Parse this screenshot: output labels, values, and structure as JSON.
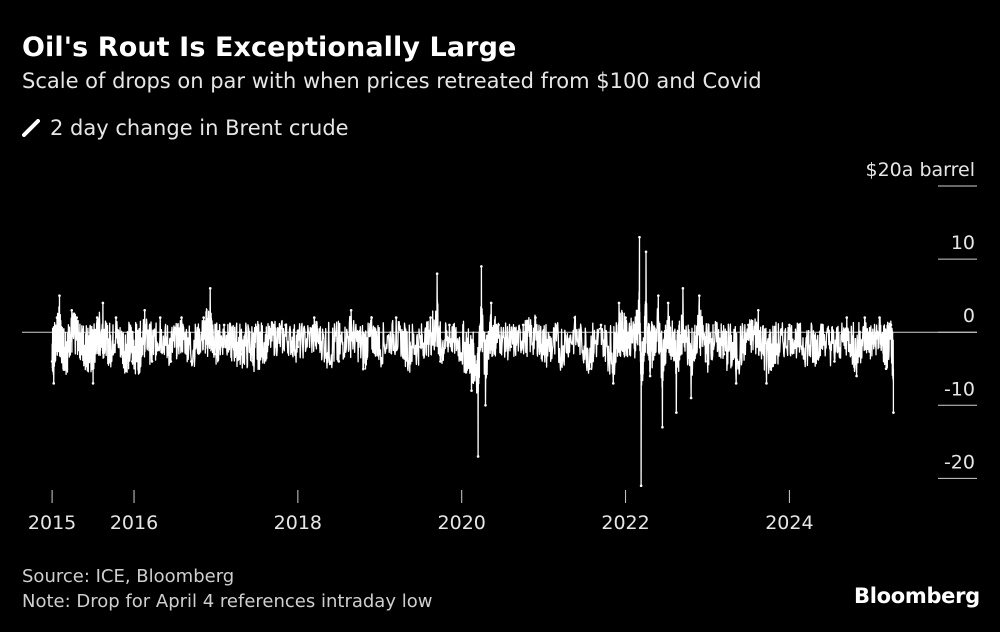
{
  "header": {
    "title": "Oil's Rout Is Exceptionally Large",
    "subtitle": "Scale of drops on par with when prices retreated from $100 and Covid"
  },
  "legend": {
    "label": "2 day change in Brent crude",
    "icon": "line-swatch-icon",
    "color": "#ffffff"
  },
  "footer": {
    "source": "Source: ICE, Bloomberg",
    "note": "Note: Drop for April 4 references intraday low",
    "logo": "Bloomberg"
  },
  "chart_data": {
    "type": "line",
    "series": [
      {
        "name": "2 day change in Brent crude",
        "color": "#ffffff",
        "points": [
          {
            "x": 2015.0,
            "y": -4
          },
          {
            "x": 2015.02,
            "y": -7
          },
          {
            "x": 2015.06,
            "y": 2
          },
          {
            "x": 2015.09,
            "y": 5
          },
          {
            "x": 2015.12,
            "y": -3
          },
          {
            "x": 2015.18,
            "y": -5
          },
          {
            "x": 2015.24,
            "y": 3
          },
          {
            "x": 2015.3,
            "y": 2
          },
          {
            "x": 2015.37,
            "y": -3
          },
          {
            "x": 2015.44,
            "y": -4
          },
          {
            "x": 2015.5,
            "y": -7
          },
          {
            "x": 2015.55,
            "y": 2
          },
          {
            "x": 2015.62,
            "y": 4
          },
          {
            "x": 2015.7,
            "y": -4
          },
          {
            "x": 2015.78,
            "y": 2
          },
          {
            "x": 2015.88,
            "y": -4
          },
          {
            "x": 2015.98,
            "y": -4
          },
          {
            "x": 2016.06,
            "y": -5
          },
          {
            "x": 2016.13,
            "y": 3
          },
          {
            "x": 2016.22,
            "y": -4
          },
          {
            "x": 2016.32,
            "y": 2
          },
          {
            "x": 2016.45,
            "y": -4
          },
          {
            "x": 2016.58,
            "y": 2
          },
          {
            "x": 2016.7,
            "y": -4
          },
          {
            "x": 2016.85,
            "y": 2
          },
          {
            "x": 2016.93,
            "y": 6
          },
          {
            "x": 2016.98,
            "y": -3
          },
          {
            "x": 2017.1,
            "y": 1
          },
          {
            "x": 2017.2,
            "y": -2
          },
          {
            "x": 2017.3,
            "y": -3
          },
          {
            "x": 2017.45,
            "y": -4
          },
          {
            "x": 2017.55,
            "y": -3
          },
          {
            "x": 2017.7,
            "y": 1
          },
          {
            "x": 2017.85,
            "y": 1
          },
          {
            "x": 2018.0,
            "y": -2
          },
          {
            "x": 2018.2,
            "y": 2
          },
          {
            "x": 2018.35,
            "y": -3
          },
          {
            "x": 2018.5,
            "y": -4
          },
          {
            "x": 2018.65,
            "y": 3
          },
          {
            "x": 2018.8,
            "y": -5
          },
          {
            "x": 2018.9,
            "y": 2
          },
          {
            "x": 2019.0,
            "y": -3
          },
          {
            "x": 2019.2,
            "y": 2
          },
          {
            "x": 2019.35,
            "y": -4
          },
          {
            "x": 2019.5,
            "y": -2
          },
          {
            "x": 2019.62,
            "y": 2
          },
          {
            "x": 2019.7,
            "y": 8
          },
          {
            "x": 2019.74,
            "y": -4
          },
          {
            "x": 2019.85,
            "y": 1
          },
          {
            "x": 2020.0,
            "y": -3
          },
          {
            "x": 2020.12,
            "y": -8
          },
          {
            "x": 2020.2,
            "y": -17
          },
          {
            "x": 2020.24,
            "y": 9
          },
          {
            "x": 2020.29,
            "y": -10
          },
          {
            "x": 2020.36,
            "y": 4
          },
          {
            "x": 2020.45,
            "y": 1
          },
          {
            "x": 2020.6,
            "y": -2
          },
          {
            "x": 2020.75,
            "y": 1
          },
          {
            "x": 2020.9,
            "y": 2
          },
          {
            "x": 2021.0,
            "y": -3
          },
          {
            "x": 2021.2,
            "y": -4
          },
          {
            "x": 2021.38,
            "y": 2
          },
          {
            "x": 2021.56,
            "y": -5
          },
          {
            "x": 2021.7,
            "y": 1
          },
          {
            "x": 2021.85,
            "y": -7
          },
          {
            "x": 2021.92,
            "y": 4
          },
          {
            "x": 2022.0,
            "y": 2
          },
          {
            "x": 2022.1,
            "y": 1
          },
          {
            "x": 2022.17,
            "y": 13
          },
          {
            "x": 2022.19,
            "y": -21
          },
          {
            "x": 2022.25,
            "y": 11
          },
          {
            "x": 2022.3,
            "y": -6
          },
          {
            "x": 2022.4,
            "y": 5
          },
          {
            "x": 2022.45,
            "y": -13
          },
          {
            "x": 2022.52,
            "y": 4
          },
          {
            "x": 2022.62,
            "y": -11
          },
          {
            "x": 2022.7,
            "y": 6
          },
          {
            "x": 2022.8,
            "y": -9
          },
          {
            "x": 2022.9,
            "y": 5
          },
          {
            "x": 2023.0,
            "y": -4
          },
          {
            "x": 2023.1,
            "y": 1
          },
          {
            "x": 2023.2,
            "y": -3
          },
          {
            "x": 2023.35,
            "y": -7
          },
          {
            "x": 2023.5,
            "y": 1
          },
          {
            "x": 2023.62,
            "y": 3
          },
          {
            "x": 2023.72,
            "y": -7
          },
          {
            "x": 2023.85,
            "y": -3
          },
          {
            "x": 2024.0,
            "y": 1
          },
          {
            "x": 2024.15,
            "y": -2
          },
          {
            "x": 2024.3,
            "y": -4
          },
          {
            "x": 2024.4,
            "y": 1
          },
          {
            "x": 2024.55,
            "y": -4
          },
          {
            "x": 2024.7,
            "y": 2
          },
          {
            "x": 2024.82,
            "y": -6
          },
          {
            "x": 2024.92,
            "y": 2
          },
          {
            "x": 2025.0,
            "y": -2
          },
          {
            "x": 2025.1,
            "y": 2
          },
          {
            "x": 2025.18,
            "y": -5
          },
          {
            "x": 2025.24,
            "y": 1
          },
          {
            "x": 2025.27,
            "y": -11
          }
        ]
      }
    ],
    "x_tick_labels": [
      {
        "x": 2015,
        "label": "2015"
      },
      {
        "x": 2016,
        "label": "2016"
      },
      {
        "x": 2018,
        "label": "2018"
      },
      {
        "x": 2020,
        "label": "2020"
      },
      {
        "x": 2022,
        "label": "2022"
      },
      {
        "x": 2024,
        "label": "2024"
      }
    ],
    "y_tick_labels": [
      {
        "y": 20,
        "label": "$20a barrel"
      },
      {
        "y": 10,
        "label": "10"
      },
      {
        "y": 0,
        "label": "0"
      },
      {
        "y": -10,
        "label": "-10"
      },
      {
        "y": -20,
        "label": "-20"
      }
    ],
    "xlim": [
      2014.95,
      2025.35
    ],
    "ylim": [
      -22,
      20
    ],
    "zero_line": true,
    "grid": false,
    "y_axis_side": "right"
  }
}
